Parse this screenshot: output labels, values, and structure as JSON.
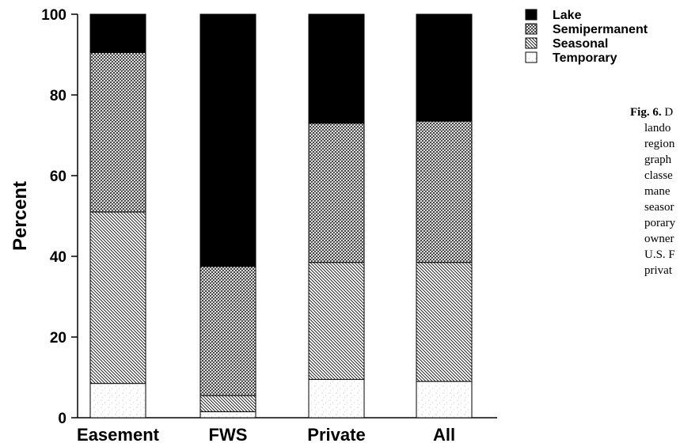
{
  "chart_data": {
    "type": "bar",
    "stacked": true,
    "categories": [
      "Easement",
      "FWS",
      "Private",
      "All"
    ],
    "series": [
      {
        "name": "Temporary",
        "pattern": "stipple",
        "values": [
          8.5,
          1.5,
          9.5,
          9.0
        ]
      },
      {
        "name": "Seasonal",
        "pattern": "diagonal",
        "values": [
          42.5,
          4.0,
          29.0,
          29.5
        ]
      },
      {
        "name": "Semipermanent",
        "pattern": "crosshatch",
        "values": [
          39.5,
          32.0,
          34.5,
          35.0
        ]
      },
      {
        "name": "Lake",
        "pattern": "solid",
        "values": [
          9.5,
          62.5,
          27.0,
          26.5
        ]
      }
    ],
    "ylabel": "Percent",
    "xlabel": "",
    "ylim": [
      0,
      100
    ],
    "yticks": [
      0,
      20,
      40,
      60,
      80,
      100
    ],
    "legend_order": [
      "Lake",
      "Semipermanent",
      "Seasonal",
      "Temporary"
    ],
    "legend_position": "top-right",
    "grid": false
  },
  "caption": {
    "fig_label": "Fig. 6.",
    "lines": [
      "D",
      "lando",
      "region",
      "graph",
      "classe",
      "mane",
      "seasor",
      "porary",
      "owner",
      "U.S. F",
      "privat"
    ]
  },
  "colors": {
    "ink": "#000000",
    "background": "#ffffff"
  }
}
